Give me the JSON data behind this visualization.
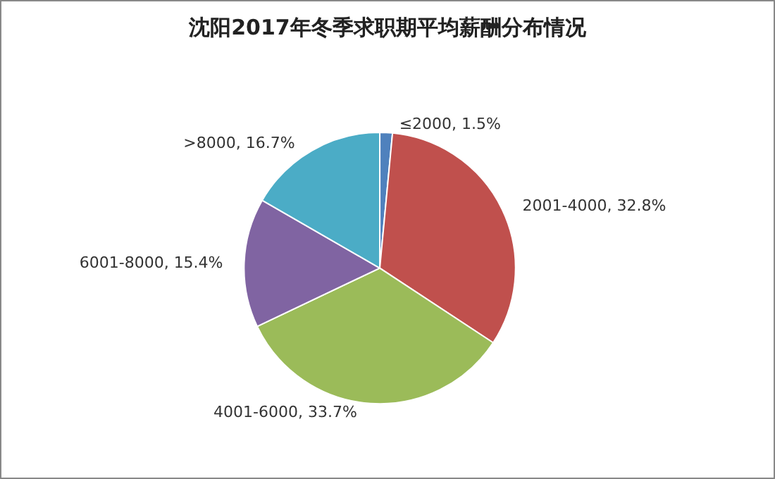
{
  "chart_data": {
    "type": "pie",
    "title": "沈阳2017年冬季求职期平均薪酬分布情况",
    "categories": [
      "≤2000",
      "2001-4000",
      "4001-6000",
      "6001-8000",
      ">8000"
    ],
    "values": [
      1.5,
      32.8,
      33.7,
      15.4,
      16.7
    ],
    "value_labels": [
      "1.5%",
      "32.8%",
      "33.7%",
      "15.4%",
      "16.7%"
    ],
    "colors": [
      "#4f81bd",
      "#c0504d",
      "#9bbb59",
      "#8064a2",
      "#4bacc6"
    ],
    "legend": false
  }
}
